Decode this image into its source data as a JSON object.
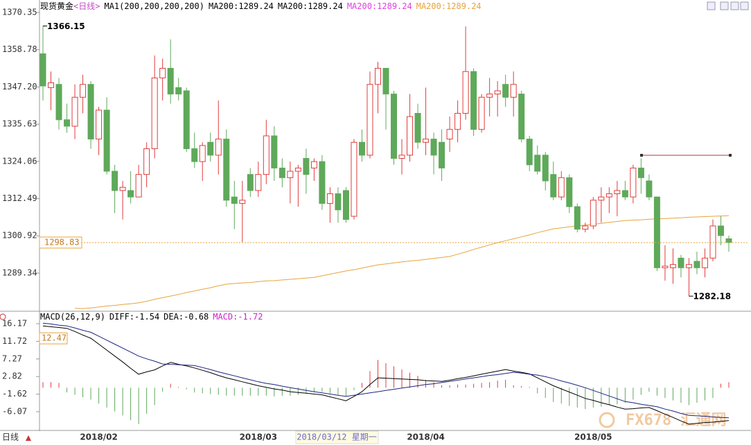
{
  "header": {
    "title": "现货黄金",
    "period": "<日线>",
    "indicator": "MA1(200,200,200,200)",
    "legend": [
      {
        "label": "MA200:1289.24",
        "color": "#000000"
      },
      {
        "label": "MA200:1289.24",
        "color": "#000000"
      },
      {
        "label": "MA200:1289.24",
        "color": "#e040e0"
      },
      {
        "label": "MA200:1289.24",
        "color": "#e8a33d"
      }
    ]
  },
  "footer": {
    "period": "日线",
    "cursor_label": "2018/03/12 星期一",
    "watermark": "FX678 汇通网"
  },
  "chart_data": [
    {
      "type": "candlestick",
      "categories": [
        null,
        null,
        null,
        null,
        null,
        null,
        null,
        "2018/02",
        null,
        null,
        null,
        null,
        null,
        null,
        null,
        null,
        null,
        null,
        null,
        null,
        null,
        null,
        null,
        null,
        null,
        null,
        null,
        "2018/03",
        null,
        null,
        null,
        null,
        null,
        null,
        null,
        null,
        null,
        null,
        null,
        null,
        null,
        null,
        null,
        null,
        null,
        null,
        null,
        null,
        "2018/04",
        null,
        null,
        null,
        null,
        null,
        null,
        null,
        null,
        null,
        null,
        null,
        null,
        null,
        null,
        null,
        null,
        null,
        null,
        null,
        null,
        "2018/05",
        null,
        null,
        null,
        null,
        null,
        null,
        null,
        null,
        null,
        null,
        null,
        null,
        null,
        null,
        null,
        null,
        null
      ],
      "open": [
        1357.5,
        1347,
        1348,
        1337,
        1335,
        1344,
        1348,
        1331,
        1340,
        1321,
        1315,
        1315,
        1313,
        1320,
        1328,
        1350,
        1353,
        1347,
        1346,
        1328,
        1324,
        1330,
        1326,
        1331,
        1313,
        1311,
        1320,
        1315,
        1320,
        1332,
        1322,
        1319,
        1321,
        1325,
        1322,
        1324,
        1311,
        1314,
        1315,
        1307,
        1330,
        1326,
        1348,
        1353,
        1345,
        1325,
        1326,
        1339,
        1330,
        1331,
        1330,
        1331,
        1334,
        1339,
        1352,
        1334,
        1344,
        1345,
        1348,
        1344,
        1345,
        1331,
        1326,
        1326,
        1320,
        1313,
        1319,
        1310,
        1303,
        1304,
        1312,
        1313,
        1314,
        1315,
        1313,
        1322,
        1318,
        1313,
        1291,
        1291,
        1294,
        1291,
        1293,
        1291,
        1294,
        1304,
        1300
      ],
      "high": [
        1366.15,
        1352,
        1350,
        1342,
        1348,
        1351,
        1349,
        1341,
        1344,
        1323,
        1318,
        1321,
        1323,
        1330,
        1357,
        1356,
        1362,
        1350,
        1347,
        1333,
        1330,
        1333,
        1343,
        1334,
        1318,
        1318,
        1322,
        1324,
        1337,
        1335,
        1325,
        1324,
        1323,
        1328,
        1325,
        1326,
        1316,
        1316,
        1316,
        1331,
        1334,
        1352,
        1355,
        1353,
        1346,
        1331,
        1345,
        1342,
        1347,
        1333,
        1334,
        1338,
        1343,
        1366,
        1353,
        1345,
        1350,
        1349,
        1351,
        1352,
        1346,
        1332,
        1329,
        1327,
        1324,
        1321,
        1320,
        1311,
        1305,
        1313,
        1316,
        1316,
        1318,
        1318,
        1323,
        1325,
        1320,
        1313,
        1298,
        1297,
        1295,
        1294,
        1296,
        1297,
        1306,
        1307,
        1301
      ],
      "low": [
        1343,
        1340,
        1334,
        1333,
        1331,
        1339,
        1328,
        1326,
        1320,
        1308,
        1306,
        1311,
        1313,
        1316,
        1325,
        1343,
        1342,
        1343,
        1327,
        1322,
        1318,
        1324,
        1320,
        1310,
        1303,
        1299,
        1313,
        1313,
        1317,
        1318,
        1316,
        1311,
        1310,
        1314,
        1318,
        1309,
        1305,
        1305,
        1305,
        1306,
        1324,
        1325,
        1339,
        1334,
        1323,
        1320,
        1324,
        1328,
        1326,
        1320,
        1318,
        1327,
        1330,
        1337,
        1332,
        1333,
        1338,
        1338,
        1341,
        1338,
        1330,
        1321,
        1320,
        1315,
        1312,
        1312,
        1308,
        1302,
        1302,
        1303,
        1305,
        1308,
        1307,
        1312,
        1311,
        1314,
        1312,
        1290,
        1287,
        1286,
        1288,
        1282.18,
        1289,
        1288,
        1293,
        1298,
        1296
      ],
      "close": [
        1347.5,
        1348.5,
        1337,
        1335,
        1344,
        1348,
        1331,
        1340,
        1321,
        1315,
        1316,
        1313,
        1320,
        1328,
        1350,
        1353,
        1345,
        1345,
        1328,
        1324,
        1329,
        1326,
        1331,
        1312,
        1311,
        1312,
        1315,
        1320,
        1332,
        1322,
        1319,
        1321,
        1322,
        1320,
        1324,
        1311,
        1314,
        1309,
        1306,
        1330,
        1326,
        1348,
        1353,
        1345,
        1325,
        1326,
        1338,
        1330,
        1331,
        1326,
        1322,
        1334,
        1339,
        1352,
        1334,
        1344,
        1345,
        1346,
        1344,
        1348,
        1331,
        1323,
        1321,
        1318,
        1313,
        1319,
        1310,
        1303,
        1304,
        1312,
        1313,
        1314,
        1315,
        1313,
        1322,
        1319,
        1313,
        1291,
        1291.5,
        1292,
        1291,
        1292,
        1291,
        1294,
        1304,
        1301,
        1298.83
      ],
      "up_color": "#e03c3c",
      "down_color": "#5ea95a",
      "lines": [
        {
          "color": "#e8a33d",
          "values": [
            null,
            null,
            null,
            null,
            1278.4,
            1278.3,
            1278.5,
            1278.8,
            1279.1,
            1279.3,
            1279.6,
            1279.8,
            1280.1,
            1280.6,
            1281.2,
            1281.7,
            1282.2,
            1282.7,
            1283.3,
            1283.8,
            1284.3,
            1284.8,
            1285.4,
            1285.9,
            1286.1,
            1286.3,
            1286.4,
            1286.7,
            1286.9,
            1287.0,
            1287.2,
            1287.4,
            1287.6,
            1287.8,
            1288.0,
            1288.5,
            1289.0,
            1289.5,
            1290.0,
            1290.4,
            1290.9,
            1291.4,
            1291.9,
            1292.2,
            1292.5,
            1292.8,
            1293.1,
            1293.3,
            1293.6,
            1293.9,
            1294.2,
            1294.5,
            1295.2,
            1295.9,
            1296.7,
            1297.4,
            1298.1,
            1298.8,
            1299.4,
            1300.0,
            1300.6,
            1301.2,
            1301.9,
            1302.5,
            1303.1,
            1303.4,
            1303.7,
            1304.0,
            1304.3,
            1304.5,
            1304.8,
            1305.1,
            1305.4,
            1305.7,
            1305.8,
            1305.9,
            1306.1,
            1306.2,
            1306.3,
            1306.4,
            1306.5,
            1306.7,
            1306.8,
            1306.9,
            1307.0,
            1307.1,
            1307.2
          ]
        }
      ],
      "ylim": [
        1277.92,
        1373.15
      ],
      "yticks": [
        1370.35,
        1358.78,
        {
          "value": 1347.2,
          "label": "1347.20"
        },
        1335.63,
        1324.06,
        1312.49,
        1300.92,
        1289.34
      ]
    },
    {
      "type": "macd",
      "title": "MACD(26,12,9)",
      "legend": [
        {
          "label": "DIFF:-1.54",
          "color": "#000000"
        },
        {
          "label": "DEA:-0.68",
          "color": "#000000"
        },
        {
          "label": "MACD:-1.72",
          "color": "#cc22cc"
        }
      ],
      "series": [
        {
          "color": "#000000",
          "values": [
            15.6,
            15.4,
            15.2,
            15.0,
            14.2,
            13.3,
            12.5,
            11.0,
            9.5,
            8.0,
            6.5,
            4.9,
            3.4,
            4.0,
            4.5,
            5.5,
            6.4,
            5.9,
            5.5,
            5.0,
            4.4,
            3.8,
            3.1,
            2.5,
            2.0,
            1.5,
            1.0,
            0.5,
            0.1,
            -0.3,
            -0.6,
            -1.0,
            -1.2,
            -1.4,
            -1.6,
            -1.8,
            -2.3,
            -2.8,
            -3.3,
            -2.2,
            -1.0,
            0.8,
            2.5,
            2.4,
            2.3,
            2.2,
            2.1,
            2.0,
            1.8,
            1.7,
            1.6,
            1.9,
            2.3,
            2.6,
            3.0,
            3.4,
            3.8,
            4.2,
            4.6,
            4.2,
            3.9,
            3.5,
            2.5,
            1.5,
            0.5,
            -0.3,
            -1.1,
            -1.9,
            -2.7,
            -3.2,
            -3.8,
            -4.3,
            -4.9,
            -5.4,
            -5.3,
            -5.1,
            -5.0,
            -5.8,
            -6.7,
            -7.5,
            -8.4,
            -9.2,
            -9.0,
            -8.8,
            -8.7,
            -8.5,
            -8.3
          ]
        },
        {
          "color": "#1a237e",
          "values": [
            16.3,
            16.1,
            15.8,
            15.6,
            15.1,
            14.5,
            14.0,
            13.0,
            12.0,
            11.0,
            10.0,
            9.0,
            8.0,
            7.3,
            6.7,
            6.0,
            5.9,
            5.8,
            5.7,
            5.6,
            5.1,
            4.6,
            4.0,
            3.5,
            3.0,
            2.5,
            2.0,
            1.5,
            1.1,
            0.8,
            0.4,
            0.0,
            -0.3,
            -0.7,
            -1.0,
            -1.3,
            -1.6,
            -1.9,
            -2.2,
            -1.9,
            -1.6,
            -1.3,
            -1.0,
            -0.7,
            -0.4,
            -0.1,
            0.2,
            0.5,
            0.8,
            1.0,
            1.3,
            1.6,
            1.9,
            2.2,
            2.5,
            2.8,
            3.1,
            3.3,
            3.6,
            3.9,
            3.7,
            3.4,
            3.2,
            2.8,
            2.3,
            1.7,
            1.2,
            0.6,
            0.0,
            -0.7,
            -1.4,
            -2.1,
            -2.8,
            -3.5,
            -3.8,
            -4.2,
            -4.5,
            -4.8,
            -5.4,
            -5.9,
            -6.5,
            -7.0,
            -7.1,
            -7.2,
            -7.4,
            -7.5,
            -7.6
          ]
        }
      ],
      "bars": [
        1.4,
        1.4,
        1.2,
        -1.2,
        -1.8,
        -2.4,
        -3.0,
        -4.0,
        -5.0,
        -6.0,
        -7.0,
        -8.2,
        -9.2,
        -6.6,
        -4.4,
        -1.0,
        1.0,
        0.2,
        -0.4,
        -1.2,
        -1.4,
        -1.6,
        -1.8,
        -2.0,
        -2.0,
        -2.0,
        -2.0,
        -2.0,
        -2.0,
        -2.2,
        -2.0,
        -2.0,
        -1.8,
        -1.4,
        -1.2,
        -1.0,
        -1.4,
        -1.8,
        -2.2,
        -0.6,
        1.2,
        4.2,
        7.0,
        6.2,
        5.4,
        4.6,
        3.8,
        3.0,
        2.0,
        1.4,
        0.6,
        0.6,
        0.8,
        0.8,
        1.0,
        1.2,
        1.4,
        1.8,
        2.0,
        0.6,
        0.4,
        0.2,
        -1.4,
        -2.6,
        -3.6,
        -4.0,
        -4.6,
        -5.0,
        -5.4,
        -5.0,
        -4.8,
        -4.4,
        -4.2,
        -3.8,
        -3.0,
        -1.8,
        -1.0,
        -2.0,
        -2.6,
        -3.2,
        -3.8,
        -4.4,
        -3.8,
        -3.2,
        -2.6,
        1.0,
        1.4
      ],
      "up_color": "#e03c3c",
      "down_color": "#5ea95a",
      "axis_value": 12.47,
      "ylim": [
        -10.62,
        18.27
      ],
      "yticks": [
        16.17,
        11.72,
        7.27,
        2.82,
        -1.62,
        -6.07
      ]
    }
  ]
}
